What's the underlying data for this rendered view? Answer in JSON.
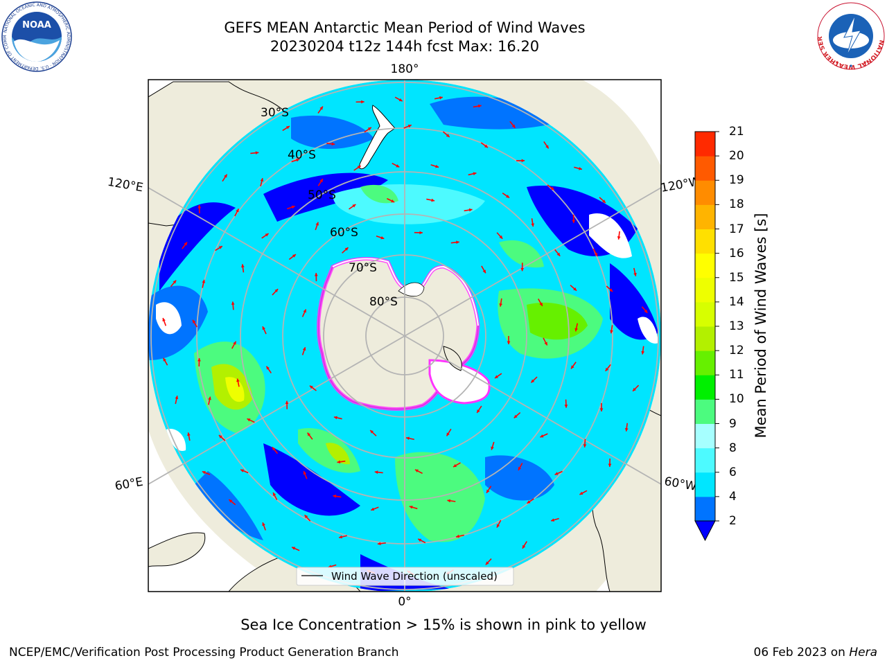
{
  "header": {
    "title_line1": "GEFS MEAN Antarctic Mean Period of Wind Waves",
    "title_line2": "20230204 t12z 144h fcst   Max: 16.20"
  },
  "logos": {
    "noaa": {
      "text": "NOAA",
      "ring_text": "NATIONAL OCEANIC AND ATMOSPHERIC ADMINISTRATION · U.S. DEPARTMENT OF COMMERCE"
    },
    "nws": {
      "ring_text": "NATIONAL WEATHER SERVICE"
    }
  },
  "map": {
    "longitude_labels": {
      "top": "180°",
      "bottom": "0°",
      "left_upper": "120°E",
      "left_lower": "60°E",
      "right_upper": "120°W",
      "right_lower": "60°W"
    },
    "latitude_labels": [
      "30°S",
      "40°S",
      "50°S",
      "60°S",
      "70°S",
      "80°S"
    ],
    "legend_label": "Wind Wave Direction (unscaled)",
    "colors": {
      "land": "#eeecdc",
      "ocean_bg": "#00e5ff",
      "grid": "#b4b4b4",
      "arrow": "#ff0000",
      "sea_ice": "#ff33ff",
      "deep_blue": "#0000ff"
    }
  },
  "colorbar": {
    "label": "Mean Period of Wind Waves [s]",
    "ticks": [
      "2",
      "4",
      "6",
      "8",
      "9",
      "10",
      "11",
      "12",
      "13",
      "14",
      "15",
      "16",
      "17",
      "18",
      "19",
      "20",
      "21"
    ],
    "colors": [
      "#0074ff",
      "#00e6ff",
      "#4dfaff",
      "#a6ffff",
      "#4cfb7f",
      "#00f000",
      "#66f000",
      "#b3f000",
      "#d7ff00",
      "#eeff00",
      "#ffff00",
      "#ffe000",
      "#ffb400",
      "#ff8c00",
      "#ff5a00",
      "#ff2a00",
      "#ff0000"
    ],
    "extend_color": "#0000ff"
  },
  "chart_data": {
    "type": "heatmap",
    "title": "GEFS MEAN Antarctic Mean Period of Wind Waves",
    "subtitle": "20230204 t12z 144h fcst   Max: 16.20",
    "variable": "Mean Period of Wind Waves [s]",
    "max_value": 16.2,
    "colorbar_levels": [
      2,
      4,
      6,
      8,
      9,
      10,
      11,
      12,
      13,
      14,
      15,
      16,
      17,
      18,
      19,
      20,
      21
    ],
    "projection": "south polar stereographic",
    "longitude_labels": [
      "180°",
      "120°W",
      "60°W",
      "0°",
      "60°E",
      "120°E"
    ],
    "latitude_labels": [
      "30°S",
      "40°S",
      "50°S",
      "60°S",
      "70°S",
      "80°S"
    ]
  },
  "footer": {
    "sea_ice_note": "Sea Ice Concentration > 15% is shown in pink to yellow",
    "credit": "NCEP/EMC/Verification Post Processing Product Generation Branch",
    "date": "06 Feb 2023 on",
    "machine": "Hera"
  }
}
